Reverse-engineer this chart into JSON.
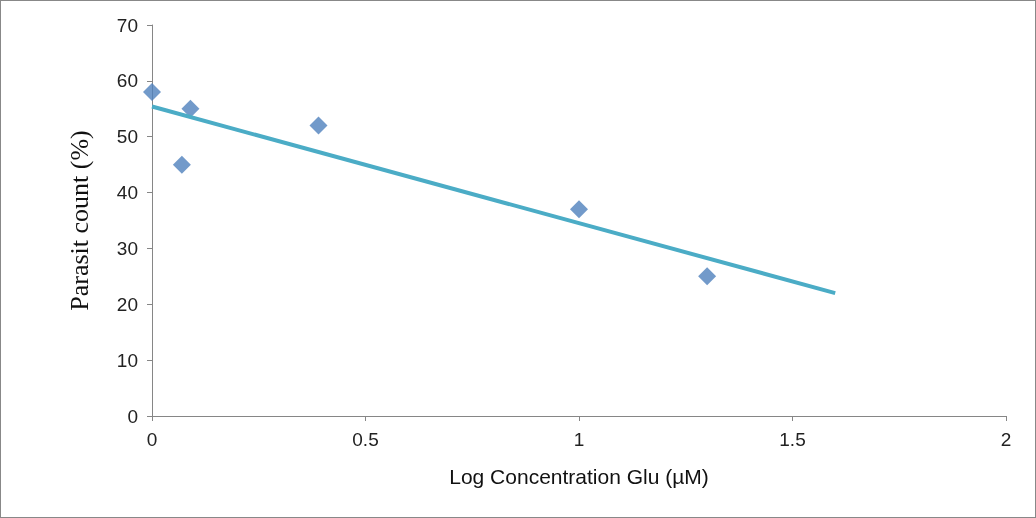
{
  "chart_data": {
    "type": "scatter",
    "xlabel": "Log Concentration Glu (µM)",
    "ylabel": "Parasit count (%)",
    "xlim": [
      0,
      2
    ],
    "xticks": [
      0,
      0.5,
      1,
      1.5,
      2
    ],
    "ylim": [
      0,
      70
    ],
    "yticks": [
      0,
      10,
      20,
      30,
      40,
      50,
      60,
      70
    ],
    "grid": false,
    "marker": "diamond",
    "series": [
      {
        "color": "#4f81bd",
        "x": [
          0,
          0.07,
          0.09,
          0.39,
          1,
          1.3
        ],
        "values": [
          58,
          45,
          55,
          52,
          37,
          25
        ]
      },
      {
        "type": "line",
        "color": "#4bacc6",
        "x": [
          0,
          1.6
        ],
        "values": [
          55.4,
          22
        ],
        "marker": "none",
        "line_style": "solid"
      }
    ]
  }
}
